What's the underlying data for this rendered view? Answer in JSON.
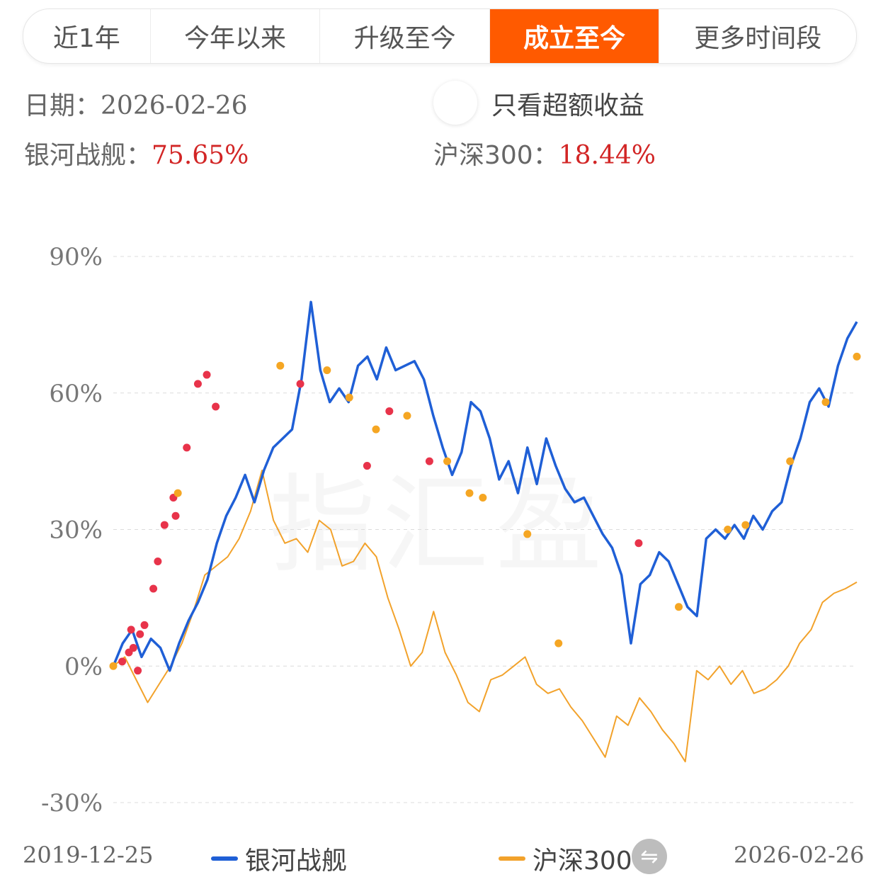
{
  "tabs": [
    {
      "label": "近1年",
      "active": false
    },
    {
      "label": "今年以来",
      "active": false
    },
    {
      "label": "升级至今",
      "active": false
    },
    {
      "label": "成立至今",
      "active": true
    },
    {
      "label": "更多时间段",
      "active": false
    }
  ],
  "info": {
    "date_label": "日期：",
    "date_value": "2026-02-26",
    "excess_toggle_label": "只看超额收益",
    "fund_label": "银河战舰：",
    "fund_value": "75.65%",
    "index_label": "沪深300：",
    "index_value": "18.44%"
  },
  "watermark": "指汇盈",
  "footer": {
    "start_date": "2019-12-25",
    "end_date": "2026-02-26",
    "swap_icon": "swap-icon"
  },
  "colors": {
    "fund_line": "#1f5fd6",
    "index_line": "#f2a22b",
    "buy_marker": "#e8334a",
    "sell_marker": "#f5a623",
    "active_tab": "#ff5a00",
    "value_red": "#d22525"
  },
  "chart_data": {
    "type": "line",
    "x_range": [
      "2019-12-25",
      "2026-02-26"
    ],
    "ylim": [
      -30,
      90
    ],
    "yticks": [
      "90%",
      "60%",
      "30%",
      "0%",
      "-30%"
    ],
    "ytick_values": [
      90,
      60,
      30,
      0,
      -30
    ],
    "grid": true,
    "legend_position": "bottom",
    "series": [
      {
        "name": "银河战舰",
        "values": [
          0,
          5,
          8,
          2,
          6,
          4,
          -1,
          5,
          10,
          14,
          19,
          27,
          33,
          37,
          42,
          36,
          43,
          48,
          50,
          52,
          63,
          80,
          65,
          58,
          61,
          58,
          66,
          68,
          63,
          70,
          65,
          66,
          67,
          63,
          55,
          48,
          42,
          47,
          58,
          56,
          50,
          41,
          45,
          38,
          48,
          40,
          50,
          44,
          39,
          36,
          37,
          33,
          29,
          26,
          20,
          5,
          18,
          20,
          25,
          23,
          18,
          13,
          11,
          28,
          30,
          28,
          31,
          28,
          33,
          30,
          34,
          36,
          44,
          50,
          58,
          61,
          57,
          66,
          72,
          75.65
        ]
      },
      {
        "name": "沪深300",
        "values": [
          0,
          2,
          -3,
          -8,
          -4,
          0,
          5,
          12,
          20,
          22,
          24,
          28,
          34,
          43,
          32,
          27,
          28,
          25,
          32,
          30,
          22,
          23,
          27,
          24,
          15,
          8,
          0,
          3,
          12,
          3,
          -2,
          -8,
          -10,
          -3,
          -2,
          0,
          2,
          -4,
          -6,
          -5,
          -9,
          -12,
          -16,
          -20,
          -11,
          -13,
          -7,
          -10,
          -14,
          -17,
          -21,
          -1,
          -3,
          0,
          -4,
          -1,
          -6,
          -5,
          -3,
          0,
          5,
          8,
          14,
          16,
          17,
          18.44
        ]
      }
    ],
    "markers": {
      "buy": [
        [
          0.02,
          1
        ],
        [
          0.035,
          3
        ],
        [
          0.04,
          8
        ],
        [
          0.045,
          4
        ],
        [
          0.055,
          -1
        ],
        [
          0.06,
          7
        ],
        [
          0.07,
          9
        ],
        [
          0.09,
          17
        ],
        [
          0.1,
          23
        ],
        [
          0.115,
          31
        ],
        [
          0.135,
          37
        ],
        [
          0.14,
          33
        ],
        [
          0.165,
          48
        ],
        [
          0.19,
          62
        ],
        [
          0.21,
          64
        ],
        [
          0.23,
          57
        ],
        [
          0.42,
          62
        ],
        [
          0.57,
          44
        ],
        [
          0.62,
          56
        ],
        [
          0.71,
          45
        ],
        [
          1.18,
          27
        ]
      ],
      "sell": [
        [
          0.0,
          0
        ],
        [
          0.145,
          38
        ],
        [
          0.375,
          66
        ],
        [
          0.48,
          65
        ],
        [
          0.53,
          59
        ],
        [
          0.59,
          52
        ],
        [
          0.66,
          55
        ],
        [
          0.75,
          45
        ],
        [
          0.8,
          38
        ],
        [
          0.83,
          37
        ],
        [
          0.93,
          29
        ],
        [
          1.0,
          5
        ],
        [
          1.27,
          13
        ],
        [
          1.38,
          30
        ],
        [
          1.42,
          31
        ],
        [
          1.52,
          45
        ],
        [
          1.6,
          58
        ],
        [
          1.67,
          68
        ]
      ]
    }
  }
}
